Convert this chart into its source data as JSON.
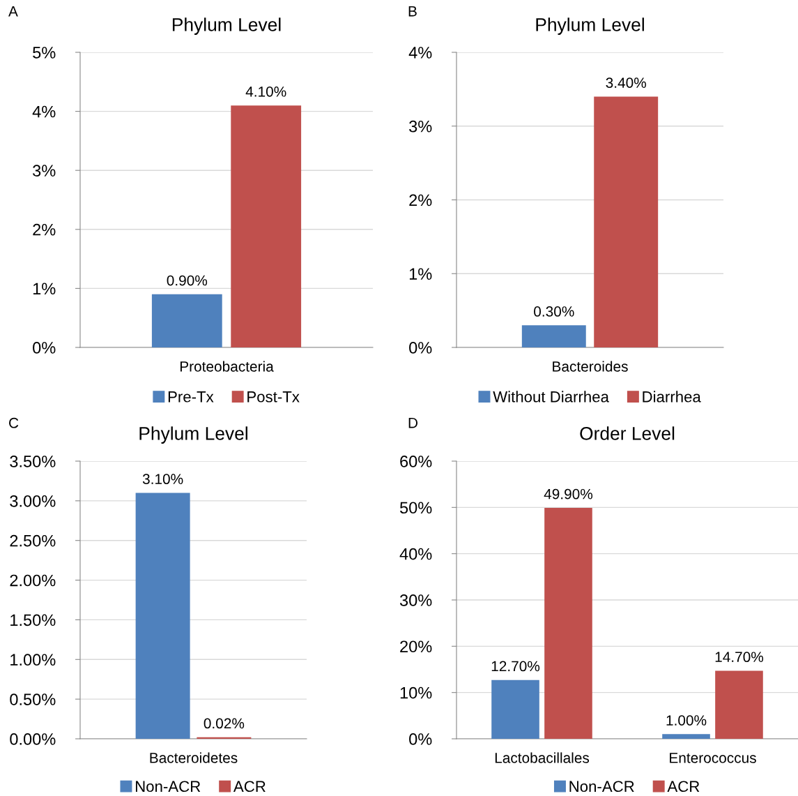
{
  "chart_data": [
    {
      "type": "bar",
      "title": "Phylum Level",
      "annotations": [
        "A"
      ],
      "categories": [
        "Proteobacteria"
      ],
      "legend": "bottom",
      "grid": "y",
      "ylim": [
        0,
        5
      ],
      "yticks": [
        {
          "value": 0,
          "label": "0%"
        },
        {
          "value": 1,
          "label": "1%"
        },
        {
          "value": 2,
          "label": "2%"
        },
        {
          "value": 3,
          "label": "3%"
        },
        {
          "value": 4,
          "label": "4%"
        },
        {
          "value": 5,
          "label": "5%"
        }
      ],
      "series": [
        {
          "name": "Pre-Tx",
          "color": "#4f81bd",
          "values": [
            0.9
          ],
          "value_labels": [
            "0.90%"
          ]
        },
        {
          "name": "Post-Tx",
          "color": "#c0504d",
          "values": [
            4.1
          ],
          "value_labels": [
            "4.10%"
          ]
        }
      ]
    },
    {
      "type": "bar",
      "title": "Phylum Level",
      "annotations": [
        "B"
      ],
      "categories": [
        "Bacteroides"
      ],
      "legend": "bottom",
      "grid": "y",
      "ylim": [
        0,
        4
      ],
      "yticks": [
        {
          "value": 0,
          "label": "0%"
        },
        {
          "value": 1,
          "label": "1%"
        },
        {
          "value": 2,
          "label": "2%"
        },
        {
          "value": 3,
          "label": "3%"
        },
        {
          "value": 4,
          "label": "4%"
        }
      ],
      "series": [
        {
          "name": "Without Diarrhea",
          "color": "#4f81bd",
          "values": [
            0.3
          ],
          "value_labels": [
            "0.30%"
          ]
        },
        {
          "name": "Diarrhea",
          "color": "#c0504d",
          "values": [
            3.4
          ],
          "value_labels": [
            "3.40%"
          ]
        }
      ]
    },
    {
      "type": "bar",
      "title": "Phylum Level",
      "annotations": [
        "C"
      ],
      "categories": [
        "Bacteroidetes"
      ],
      "legend": "bottom",
      "grid": "y",
      "ylim": [
        0,
        3.5
      ],
      "yticks": [
        {
          "value": 0,
          "label": "0.00%"
        },
        {
          "value": 0.5,
          "label": "0.50%"
        },
        {
          "value": 1,
          "label": "1.00%"
        },
        {
          "value": 1.5,
          "label": "1.50%"
        },
        {
          "value": 2,
          "label": "2.00%"
        },
        {
          "value": 2.5,
          "label": "2.50%"
        },
        {
          "value": 3,
          "label": "3.00%"
        },
        {
          "value": 3.5,
          "label": "3.50%"
        }
      ],
      "series": [
        {
          "name": "Non-ACR",
          "color": "#4f81bd",
          "values": [
            3.1
          ],
          "value_labels": [
            "3.10%"
          ]
        },
        {
          "name": "ACR",
          "color": "#c0504d",
          "values": [
            0.02
          ],
          "value_labels": [
            "0.02%"
          ]
        }
      ]
    },
    {
      "type": "bar",
      "title": "Order Level",
      "annotations": [
        "D"
      ],
      "categories": [
        "Lactobacillales",
        "Enterococcus"
      ],
      "legend": "bottom",
      "grid": "y",
      "ylim": [
        0,
        60
      ],
      "yticks": [
        {
          "value": 0,
          "label": "0%"
        },
        {
          "value": 10,
          "label": "10%"
        },
        {
          "value": 20,
          "label": "20%"
        },
        {
          "value": 30,
          "label": "30%"
        },
        {
          "value": 40,
          "label": "40%"
        },
        {
          "value": 50,
          "label": "50%"
        },
        {
          "value": 60,
          "label": "60%"
        }
      ],
      "series": [
        {
          "name": "Non-ACR",
          "color": "#4f81bd",
          "values": [
            12.7,
            1.0
          ],
          "value_labels": [
            "12.70%",
            "1.00%"
          ]
        },
        {
          "name": "ACR",
          "color": "#c0504d",
          "values": [
            49.9,
            14.7
          ],
          "value_labels": [
            "49.90%",
            "14.70%"
          ]
        }
      ]
    }
  ]
}
